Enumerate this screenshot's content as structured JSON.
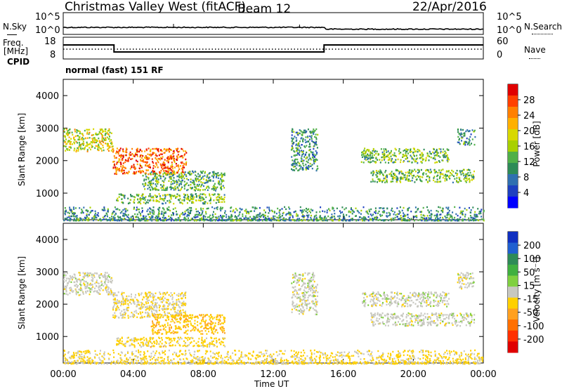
{
  "header": {
    "station": "Christmas Valley West (fitACF)",
    "beam": "Beam 12",
    "date": "22/Apr/2016"
  },
  "noise_panel": {
    "left_label": "N.Sky",
    "right_label": "N.Search",
    "ticks_left": [
      "10^5",
      "10^0"
    ],
    "ticks_right": [
      "10^5",
      "10^0"
    ]
  },
  "freq_panel": {
    "left_label_1": "Freq.",
    "left_label_2": "[MHz]",
    "right_label": "Nave",
    "ticks_left": [
      "18",
      "8"
    ],
    "ticks_right": [
      "60",
      "0"
    ]
  },
  "cpid": {
    "label": "CPID",
    "value": "normal (fast) 151 RF"
  },
  "chart_data": [
    {
      "type": "heatmap",
      "title": "",
      "quantity": "Power",
      "ylabel": "Slant Range [km]",
      "xlabel": "",
      "ylim": [
        180,
        4500
      ],
      "xlim": [
        0,
        24
      ],
      "y_ticks": [
        "4000",
        "3000",
        "2000",
        "1000"
      ],
      "colorbar_label": "Power [dB]",
      "colorbar_ticks": [
        "28",
        "24",
        "20",
        "16",
        "12",
        "8",
        "4"
      ],
      "colorbar_colors": [
        "#e00000",
        "#ff4000",
        "#ff8000",
        "#ffb000",
        "#d8d800",
        "#a8d000",
        "#50b048",
        "#2e8b57",
        "#3070b0",
        "#1e40c0",
        "#0000ff"
      ],
      "echo_regions": [
        {
          "t_start": 0.0,
          "t_end": 2.8,
          "range_low": 2300,
          "range_high": 3000,
          "power_db": 18
        },
        {
          "t_start": 2.8,
          "t_end": 7.0,
          "range_low": 1600,
          "range_high": 2400,
          "power_db": 26
        },
        {
          "t_start": 4.5,
          "t_end": 9.2,
          "range_low": 1100,
          "range_high": 1700,
          "power_db": 12
        },
        {
          "t_start": 3.0,
          "t_end": 9.2,
          "range_low": 700,
          "range_high": 1000,
          "power_db": 14
        },
        {
          "t_start": 13.0,
          "t_end": 14.5,
          "range_low": 1700,
          "range_high": 3000,
          "power_db": 10
        },
        {
          "t_start": 17.0,
          "t_end": 22.0,
          "range_low": 1950,
          "range_high": 2400,
          "power_db": 14
        },
        {
          "t_start": 17.5,
          "t_end": 23.5,
          "range_low": 1350,
          "range_high": 1750,
          "power_db": 14
        },
        {
          "t_start": 22.5,
          "t_end": 23.5,
          "range_low": 2500,
          "range_high": 3000,
          "power_db": 10
        },
        {
          "t_start": 0.0,
          "t_end": 24.0,
          "range_low": 180,
          "range_high": 600,
          "power_db": 10
        }
      ]
    },
    {
      "type": "heatmap",
      "title": "",
      "quantity": "Velocity",
      "ylabel": "Slant Range [km]",
      "xlabel": "Time UT",
      "ylim": [
        180,
        4500
      ],
      "xlim": [
        0,
        24
      ],
      "x_ticks": [
        "00:00",
        "04:00",
        "08:00",
        "12:00",
        "16:00",
        "20:00",
        "00:00"
      ],
      "y_ticks": [
        "4000",
        "3000",
        "2000",
        "1000"
      ],
      "colorbar_label": "Velocity [m s⁻¹]",
      "colorbar_ticks": [
        "200",
        "100",
        "50",
        "15",
        "-15",
        "-50",
        "-100",
        "-200"
      ],
      "colorbar_colors": [
        "#1030c0",
        "#2060d0",
        "#2e8b57",
        "#40b040",
        "#80d040",
        "#c8c8c0",
        "#ffd000",
        "#ffa020",
        "#ff7000",
        "#ff3000",
        "#e00000"
      ],
      "echo_regions": [
        {
          "t_start": 0.0,
          "t_end": 2.8,
          "range_low": 2300,
          "range_high": 3000,
          "velocity": 0
        },
        {
          "t_start": 2.8,
          "t_end": 7.0,
          "range_low": 1600,
          "range_high": 2400,
          "velocity": -20
        },
        {
          "t_start": 5.0,
          "t_end": 9.2,
          "range_low": 1100,
          "range_high": 1700,
          "velocity": -60
        },
        {
          "t_start": 3.0,
          "t_end": 9.2,
          "range_low": 700,
          "range_high": 1000,
          "velocity": -40
        },
        {
          "t_start": 13.0,
          "t_end": 14.5,
          "range_low": 1700,
          "range_high": 3000,
          "velocity": 0
        },
        {
          "t_start": 17.0,
          "t_end": 22.0,
          "range_low": 1950,
          "range_high": 2400,
          "velocity": 0
        },
        {
          "t_start": 17.5,
          "t_end": 23.5,
          "range_low": 1350,
          "range_high": 1750,
          "velocity": 0
        },
        {
          "t_start": 22.5,
          "t_end": 23.5,
          "range_low": 2500,
          "range_high": 3000,
          "velocity": 0
        },
        {
          "t_start": 0.0,
          "t_end": 24.0,
          "range_low": 180,
          "range_high": 600,
          "velocity": -30
        }
      ]
    }
  ]
}
